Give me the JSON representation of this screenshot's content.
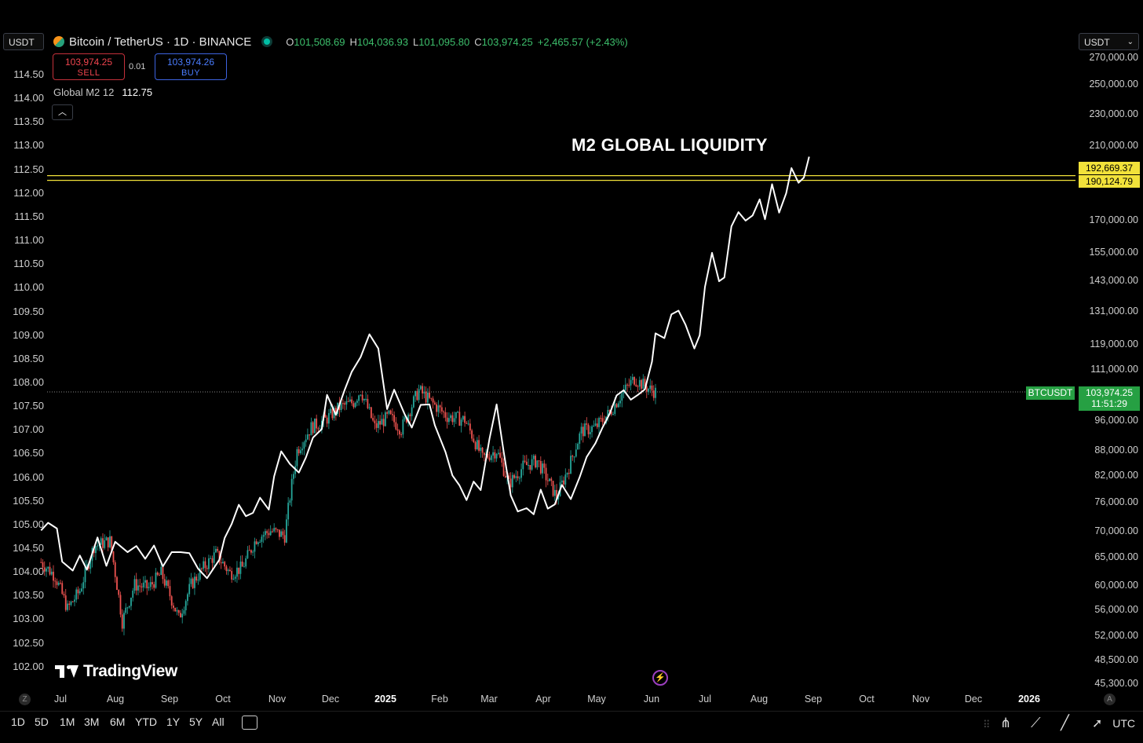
{
  "left_currency": "USDT",
  "right_currency": "USDT",
  "symbol": {
    "title": "Bitcoin / TetherUS · 1D · BINANCE",
    "ohlc": [
      {
        "k": "O",
        "v": "101,508.69"
      },
      {
        "k": "H",
        "v": "104,036.93"
      },
      {
        "k": "L",
        "v": "101,095.80"
      },
      {
        "k": "C",
        "v": "103,974.25"
      }
    ],
    "change": "+2,465.57 (+2.43%)"
  },
  "trade": {
    "sell_price": "103,974.25",
    "sell_label": "SELL",
    "spread": "0.01",
    "buy_price": "103,974.26",
    "buy_label": "BUY"
  },
  "indicator": {
    "name": "Global M2 12",
    "value": "112.75"
  },
  "annotation": "M2 GLOBAL LIQUIDITY",
  "left_axis": [
    "114.50",
    "114.00",
    "113.50",
    "113.00",
    "112.50",
    "112.00",
    "111.50",
    "111.00",
    "110.50",
    "110.00",
    "109.50",
    "109.00",
    "108.50",
    "108.00",
    "107.50",
    "107.00",
    "106.50",
    "106.00",
    "105.50",
    "105.00",
    "104.50",
    "104.00",
    "103.50",
    "103.00",
    "102.50",
    "102.00"
  ],
  "right_axis": [
    "270,000.00",
    "250,000.00",
    "230,000.00",
    "210,000.00",
    "170,000.00",
    "155,000.00",
    "143,000.00",
    "131,000.00",
    "119,000.00",
    "111,000.00",
    "96,000.00",
    "88,000.00",
    "82,000.00",
    "76,000.00",
    "70,000.00",
    "65,000.00",
    "60,000.00",
    "56,000.00",
    "52,000.00",
    "48,500.00",
    "45,300.00"
  ],
  "x_axis": [
    "Jul",
    "Aug",
    "Sep",
    "Oct",
    "Nov",
    "Dec",
    "2025",
    "Feb",
    "Mar",
    "Apr",
    "May",
    "Jun",
    "Jul",
    "Aug",
    "Sep",
    "Oct",
    "Nov",
    "Dec",
    "2026"
  ],
  "price_labels": {
    "line1": "192,669.37",
    "line2": "190,124.79"
  },
  "btc": {
    "symbol": "BTCUSDT",
    "price": "103,974.25",
    "countdown": "11:51:29"
  },
  "brand": "TradingView",
  "ranges": [
    "1D",
    "5D",
    "1M",
    "3M",
    "6M",
    "YTD",
    "1Y",
    "5Y",
    "All"
  ],
  "timezone": "UTC",
  "left_circle": "Z",
  "right_circle": "A",
  "colors": {
    "up": "#26a69a",
    "down": "#ef5350",
    "m2": "#ffffff",
    "hline": "#f2e23a",
    "btc": "#26a043"
  },
  "chart_data": {
    "type": "line",
    "m2_series": [
      [
        "2024-06-20",
        104.86
      ],
      [
        "2024-06-24",
        105.02
      ],
      [
        "2024-06-29",
        104.9
      ],
      [
        "2024-07-02",
        104.2
      ],
      [
        "2024-07-08",
        104.01
      ],
      [
        "2024-07-12",
        104.33
      ],
      [
        "2024-07-16",
        104.03
      ],
      [
        "2024-07-22",
        104.71
      ],
      [
        "2024-07-27",
        104.11
      ],
      [
        "2024-08-01",
        104.62
      ],
      [
        "2024-08-08",
        104.4
      ],
      [
        "2024-08-13",
        104.53
      ],
      [
        "2024-08-18",
        104.26
      ],
      [
        "2024-08-23",
        104.54
      ],
      [
        "2024-08-28",
        104.1
      ],
      [
        "2024-09-02",
        104.4
      ],
      [
        "2024-09-07",
        104.4
      ],
      [
        "2024-09-12",
        104.38
      ],
      [
        "2024-09-17",
        104.05
      ],
      [
        "2024-09-22",
        103.85
      ],
      [
        "2024-09-29",
        104.24
      ],
      [
        "2024-10-02",
        104.7
      ],
      [
        "2024-10-06",
        105.0
      ],
      [
        "2024-10-10",
        105.4
      ],
      [
        "2024-10-14",
        105.16
      ],
      [
        "2024-10-18",
        105.23
      ],
      [
        "2024-10-22",
        105.55
      ],
      [
        "2024-10-27",
        105.3
      ],
      [
        "2024-10-30",
        106.0
      ],
      [
        "2024-11-03",
        106.53
      ],
      [
        "2024-11-08",
        106.26
      ],
      [
        "2024-11-13",
        106.08
      ],
      [
        "2024-11-17",
        106.4
      ],
      [
        "2024-11-21",
        106.82
      ],
      [
        "2024-11-26",
        107.0
      ],
      [
        "2024-11-29",
        107.72
      ],
      [
        "2024-12-04",
        107.3
      ],
      [
        "2024-12-09",
        107.83
      ],
      [
        "2024-12-13",
        108.21
      ],
      [
        "2024-12-18",
        108.52
      ],
      [
        "2024-12-23",
        109.0
      ],
      [
        "2024-12-28",
        108.7
      ],
      [
        "2025-01-02",
        107.42
      ],
      [
        "2025-01-06",
        107.83
      ],
      [
        "2025-01-12",
        107.31
      ],
      [
        "2025-01-16",
        107.03
      ],
      [
        "2025-01-21",
        107.51
      ],
      [
        "2025-01-26",
        107.52
      ],
      [
        "2025-01-29",
        107.08
      ],
      [
        "2025-02-01",
        106.8
      ],
      [
        "2025-02-04",
        106.52
      ],
      [
        "2025-02-08",
        106.02
      ],
      [
        "2025-02-12",
        105.81
      ],
      [
        "2025-02-16",
        105.5
      ],
      [
        "2025-02-20",
        105.89
      ],
      [
        "2025-02-24",
        105.71
      ],
      [
        "2025-03-01",
        106.8
      ],
      [
        "2025-03-05",
        107.52
      ],
      [
        "2025-03-09",
        106.52
      ],
      [
        "2025-03-13",
        105.6
      ],
      [
        "2025-03-17",
        105.26
      ],
      [
        "2025-03-22",
        105.33
      ],
      [
        "2025-03-26",
        105.2
      ],
      [
        "2025-03-30",
        105.72
      ],
      [
        "2025-04-03",
        105.32
      ],
      [
        "2025-04-07",
        105.41
      ],
      [
        "2025-04-11",
        105.82
      ],
      [
        "2025-04-16",
        105.52
      ],
      [
        "2025-04-21",
        105.98
      ],
      [
        "2025-04-25",
        106.41
      ],
      [
        "2025-04-30",
        106.7
      ],
      [
        "2025-05-04",
        107.03
      ],
      [
        "2025-05-08",
        107.32
      ],
      [
        "2025-05-12",
        107.71
      ],
      [
        "2025-05-16",
        107.82
      ],
      [
        "2025-05-20",
        107.62
      ],
      [
        "2025-05-24",
        107.72
      ],
      [
        "2025-05-28",
        107.84
      ],
      [
        "2025-06-01",
        108.42
      ],
      [
        "2025-06-03",
        109.02
      ],
      [
        "2025-06-08",
        108.92
      ],
      [
        "2025-06-12",
        109.42
      ],
      [
        "2025-06-16",
        109.5
      ],
      [
        "2025-06-20",
        109.2
      ],
      [
        "2025-06-25",
        108.7
      ],
      [
        "2025-06-28",
        108.98
      ],
      [
        "2025-07-01",
        110.0
      ],
      [
        "2025-07-05",
        110.72
      ],
      [
        "2025-07-09",
        110.12
      ],
      [
        "2025-07-12",
        110.2
      ],
      [
        "2025-07-16",
        111.28
      ],
      [
        "2025-07-20",
        111.58
      ],
      [
        "2025-07-24",
        111.4
      ],
      [
        "2025-07-28",
        111.51
      ],
      [
        "2025-08-01",
        111.85
      ],
      [
        "2025-08-04",
        111.43
      ],
      [
        "2025-08-08",
        112.17
      ],
      [
        "2025-08-12",
        111.57
      ],
      [
        "2025-08-16",
        111.98
      ],
      [
        "2025-08-19",
        112.51
      ],
      [
        "2025-08-23",
        112.2
      ],
      [
        "2025-08-26",
        112.31
      ],
      [
        "2025-08-29",
        112.75
      ]
    ],
    "btc_series": [
      [
        "2024-06-20",
        64000
      ],
      [
        "2024-06-28",
        61500
      ],
      [
        "2024-07-05",
        56000
      ],
      [
        "2024-07-12",
        59000
      ],
      [
        "2024-07-20",
        67000
      ],
      [
        "2024-07-29",
        68000
      ],
      [
        "2024-08-05",
        54000
      ],
      [
        "2024-08-12",
        60000
      ],
      [
        "2024-08-20",
        59500
      ],
      [
        "2024-08-27",
        62000
      ],
      [
        "2024-09-06",
        54500
      ],
      [
        "2024-09-13",
        60000
      ],
      [
        "2024-09-20",
        63000
      ],
      [
        "2024-09-27",
        65500
      ],
      [
        "2024-10-05",
        62000
      ],
      [
        "2024-10-12",
        63000
      ],
      [
        "2024-10-20",
        68500
      ],
      [
        "2024-10-28",
        70000
      ],
      [
        "2024-11-05",
        69000
      ],
      [
        "2024-11-12",
        88000
      ],
      [
        "2024-11-20",
        94000
      ],
      [
        "2024-11-28",
        96000
      ],
      [
        "2024-12-06",
        99500
      ],
      [
        "2024-12-14",
        101000
      ],
      [
        "2024-12-18",
        104500
      ],
      [
        "2024-12-26",
        94000
      ],
      [
        "2025-01-03",
        97000
      ],
      [
        "2025-01-10",
        93500
      ],
      [
        "2025-01-20",
        104500
      ],
      [
        "2025-01-27",
        101000
      ],
      [
        "2025-02-05",
        97000
      ],
      [
        "2025-02-15",
        96000
      ],
      [
        "2025-02-25",
        86000
      ],
      [
        "2025-03-05",
        88000
      ],
      [
        "2025-03-12",
        80000
      ],
      [
        "2025-03-20",
        84000
      ],
      [
        "2025-03-28",
        85500
      ],
      [
        "2025-04-08",
        77000
      ],
      [
        "2025-04-15",
        84000
      ],
      [
        "2025-04-22",
        93000
      ],
      [
        "2025-04-30",
        94000
      ],
      [
        "2025-05-08",
        98000
      ],
      [
        "2025-05-15",
        103500
      ],
      [
        "2025-05-22",
        108000
      ],
      [
        "2025-05-30",
        105000
      ],
      [
        "2025-06-03",
        103974
      ]
    ],
    "x_type": "date",
    "hlines": [
      192669.37,
      190124.79
    ],
    "last_price": 103974.25
  }
}
